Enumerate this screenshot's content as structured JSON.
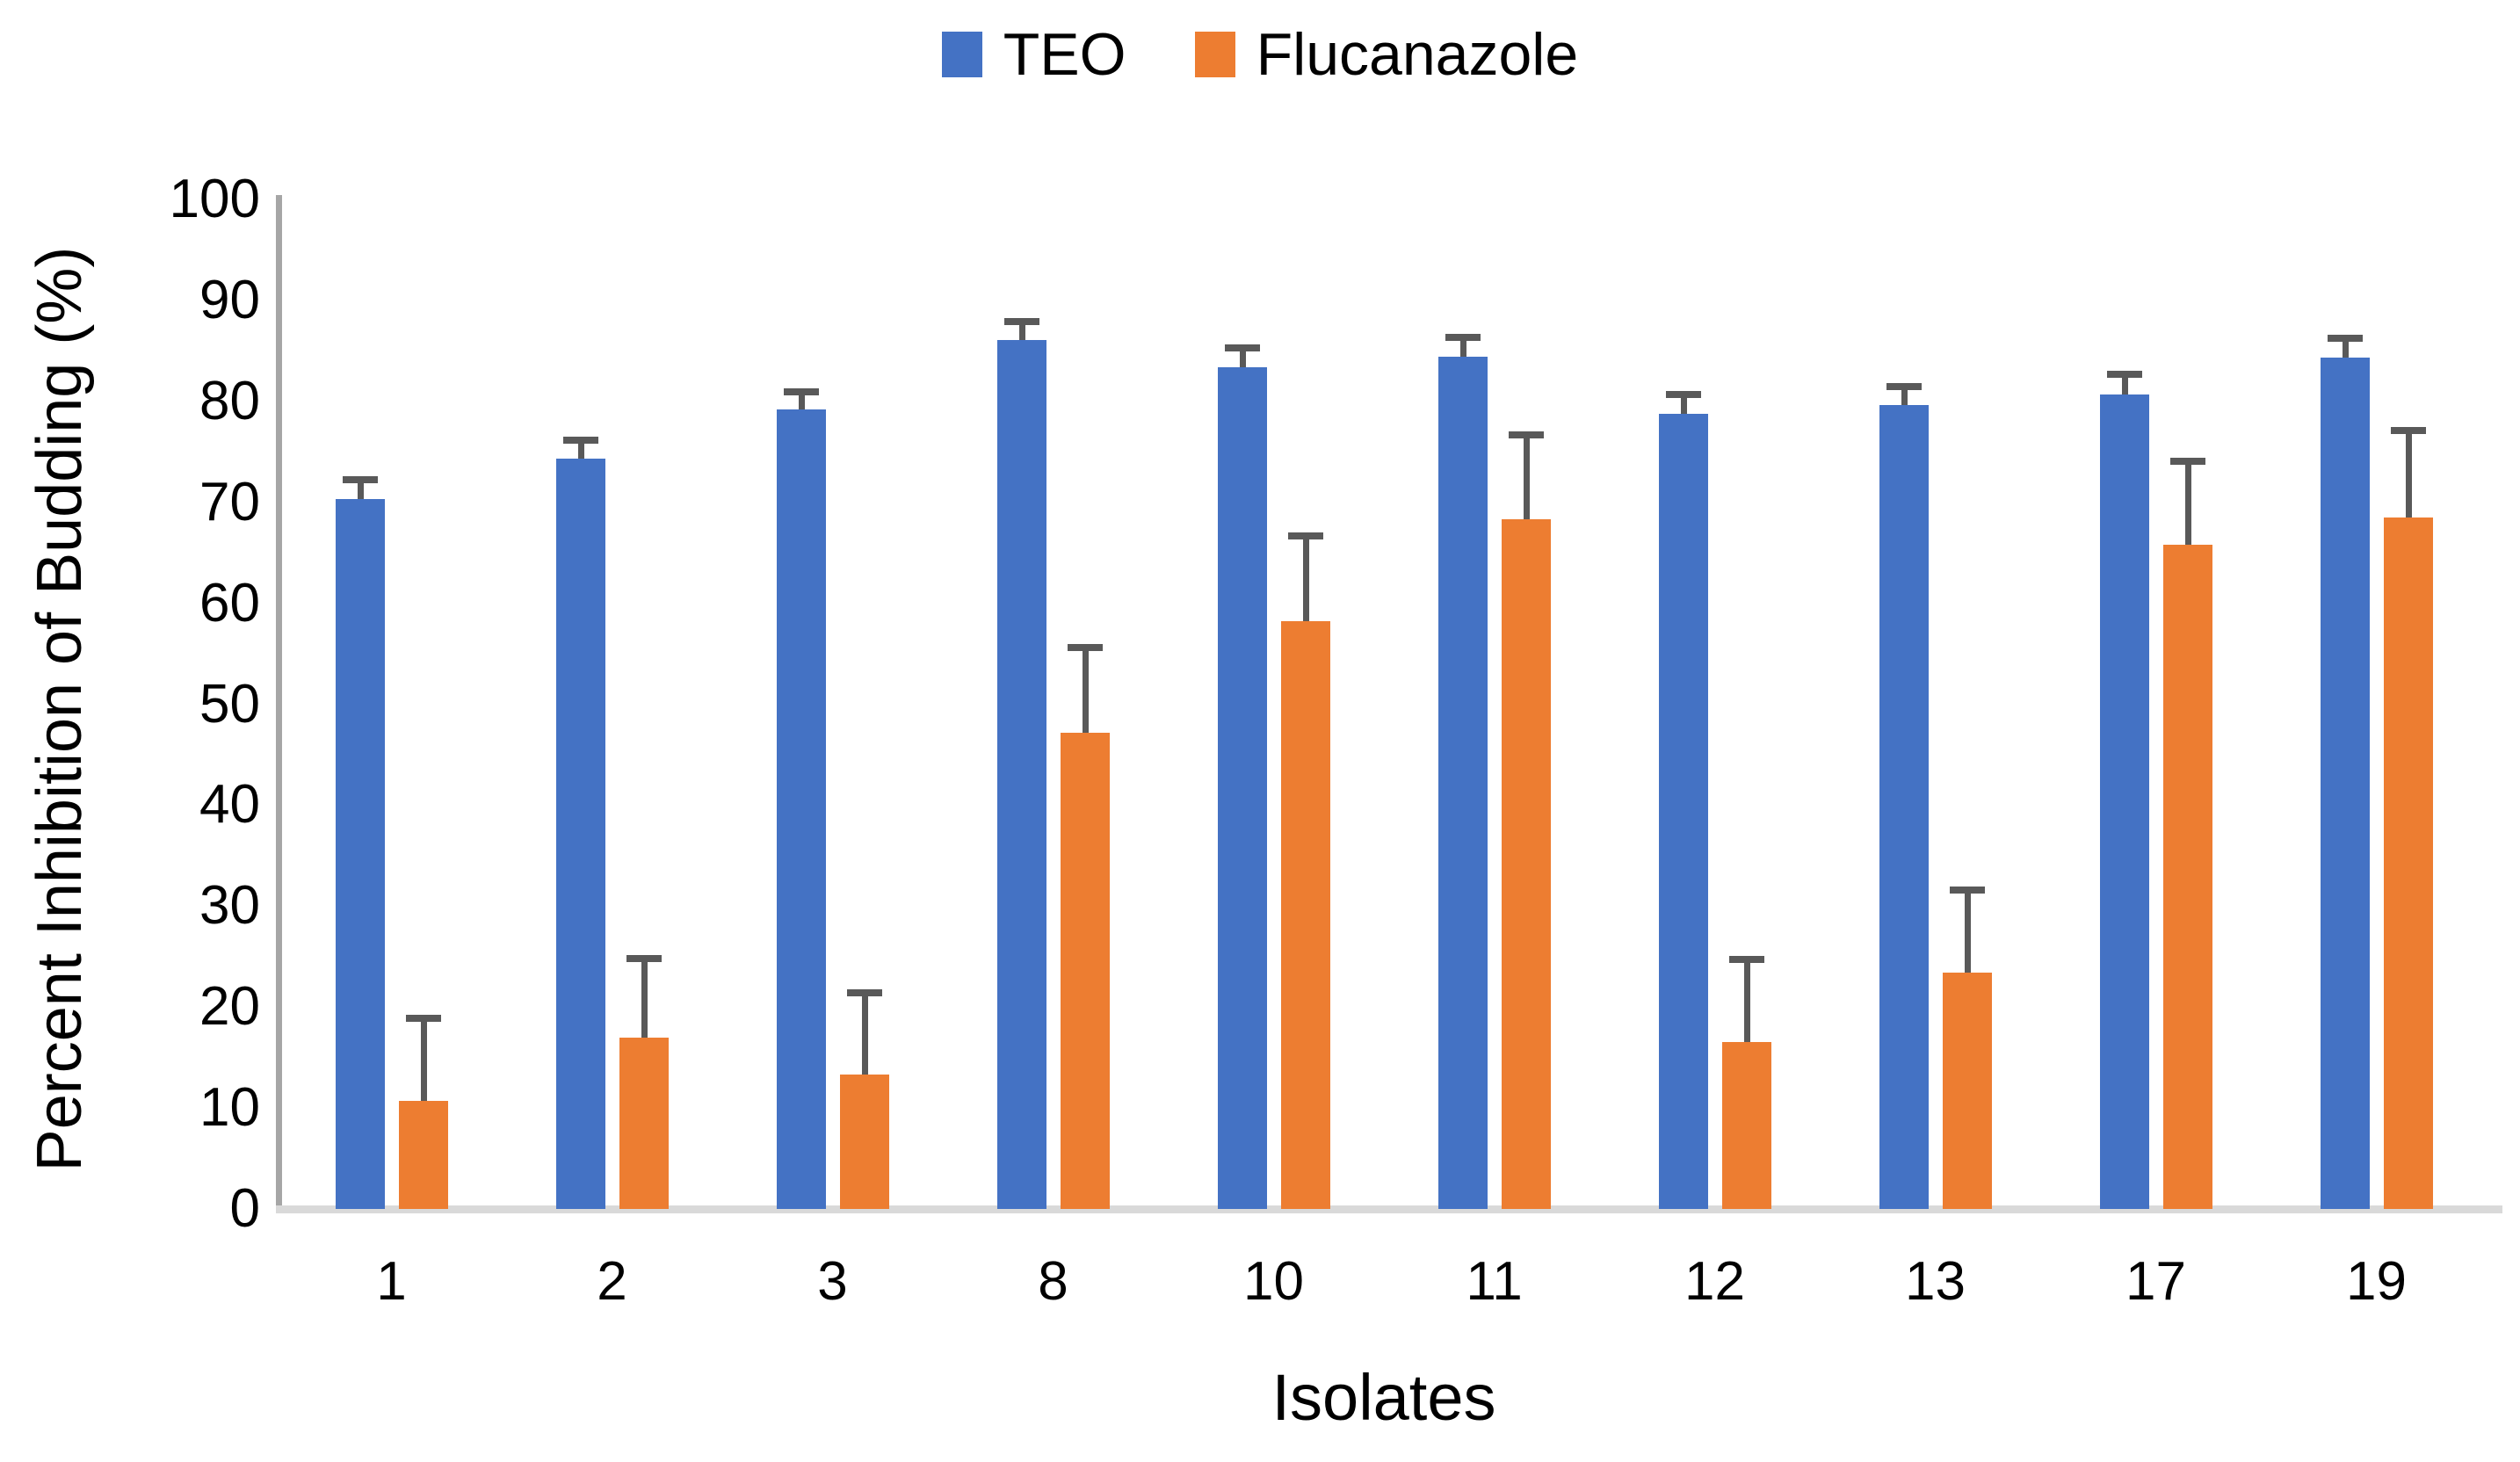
{
  "legend": {
    "items": [
      {
        "label": "TEO",
        "color": "#4472C4"
      },
      {
        "label": "Flucanazole",
        "color": "#ED7D31"
      }
    ]
  },
  "chart_data": {
    "type": "bar",
    "title": "",
    "xlabel": "Isolates",
    "ylabel": "Percent Inhibition of Budding (%)",
    "ylim": [
      0,
      100
    ],
    "ytick_step": 10,
    "ytick_labels": [
      "0",
      "10",
      "20",
      "30",
      "40",
      "50",
      "60",
      "70",
      "80",
      "90",
      "100"
    ],
    "grid": false,
    "legend_position": "top-center",
    "categories": [
      "1",
      "2",
      "3",
      "8",
      "10",
      "11",
      "12",
      "13",
      "17",
      "19"
    ],
    "series": [
      {
        "name": "TEO",
        "color": "#4472C4",
        "values": [
          70.3,
          74.3,
          79.2,
          86.1,
          83.4,
          84.4,
          78.8,
          79.6,
          80.7,
          84.3
        ],
        "error_plus": [
          1.8,
          1.7,
          1.6,
          1.6,
          1.7,
          1.8,
          1.7,
          1.7,
          1.8,
          1.8
        ]
      },
      {
        "name": "Flucanazole",
        "color": "#ED7D31",
        "values": [
          10.7,
          17.0,
          13.3,
          47.2,
          58.2,
          68.3,
          16.5,
          23.4,
          65.8,
          68.5
        ],
        "error_plus": [
          8.0,
          7.6,
          7.9,
          8.2,
          8.3,
          8.2,
          8.0,
          8.0,
          8.1,
          8.4
        ]
      }
    ],
    "colors": {
      "error_bar": "#595959",
      "y_axis_line": "#A6A6A6",
      "x_baseline": "#D9D9D9",
      "text": "#000000"
    }
  }
}
